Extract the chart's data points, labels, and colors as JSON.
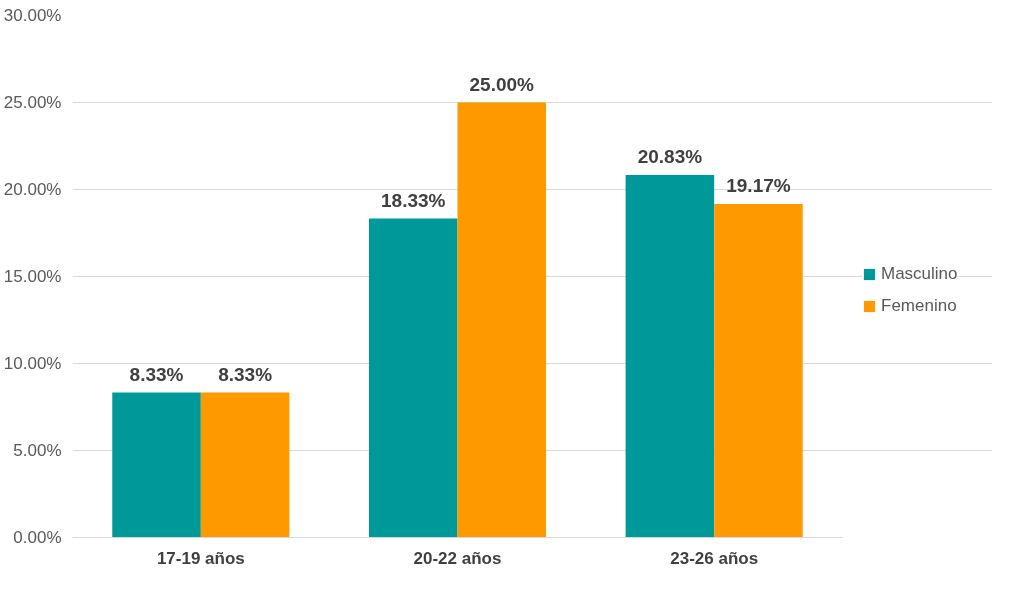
{
  "chart_data": {
    "type": "bar",
    "categories": [
      "17-19 años",
      "20-22 años",
      "23-26 años"
    ],
    "series": [
      {
        "name": "Masculino",
        "color": "#009999",
        "values": [
          8.33,
          18.33,
          20.83
        ],
        "value_labels": [
          "8.33%",
          "18.33%",
          "20.83%"
        ]
      },
      {
        "name": "Femenino",
        "color": "#ff9900",
        "values": [
          8.33,
          25.0,
          19.17
        ],
        "value_labels": [
          "8.33%",
          "25.00%",
          "19.17%"
        ]
      }
    ],
    "ylim": [
      0,
      30
    ],
    "yticks": [
      {
        "value": 0,
        "label": "0.00%"
      },
      {
        "value": 5,
        "label": "5.00%"
      },
      {
        "value": 10,
        "label": "10.00%"
      },
      {
        "value": 15,
        "label": "15.00%"
      },
      {
        "value": 20,
        "label": "20.00%"
      },
      {
        "value": 25,
        "label": "25.00%"
      },
      {
        "value": 30,
        "label": "30.00%"
      }
    ],
    "grid": "y",
    "legend": "right"
  }
}
